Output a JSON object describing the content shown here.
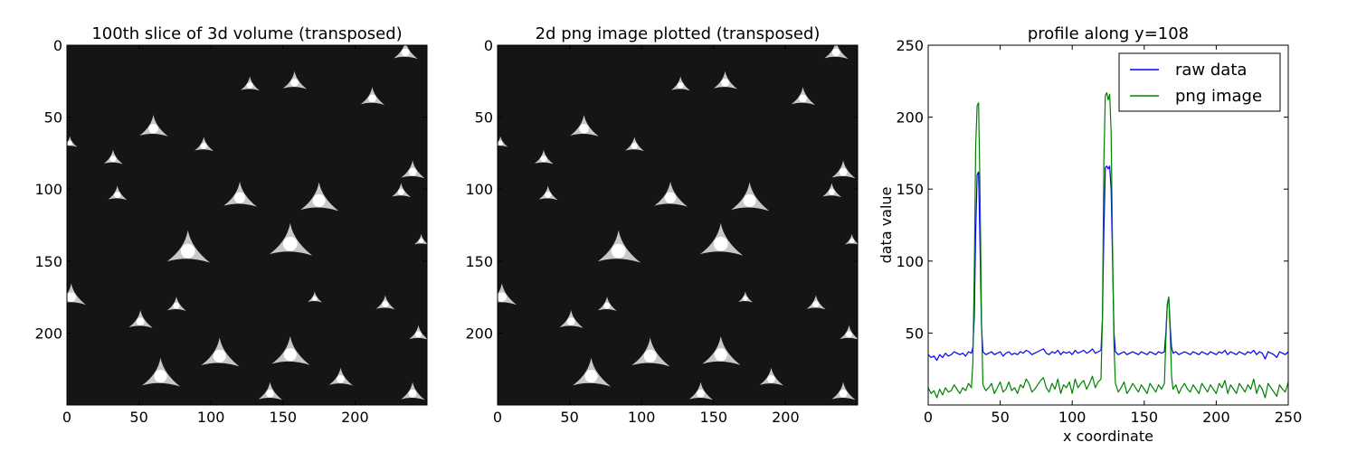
{
  "chart_data": [
    {
      "type": "heatmap",
      "title": "100th slice of 3d volume (transposed)",
      "colormap": "gray",
      "xlim": [
        0,
        250
      ],
      "ylim": [
        250,
        0
      ],
      "xticks": [
        0,
        50,
        100,
        150,
        200
      ],
      "yticks": [
        0,
        50,
        100,
        150,
        200
      ],
      "background_color": "#151515",
      "features": [
        {
          "x": 60,
          "y": 58,
          "size": 6
        },
        {
          "x": 95,
          "y": 70,
          "size": 4
        },
        {
          "x": 32,
          "y": 79,
          "size": 4
        },
        {
          "x": 127,
          "y": 28,
          "size": 4
        },
        {
          "x": 158,
          "y": 26,
          "size": 5
        },
        {
          "x": 212,
          "y": 37,
          "size": 5
        },
        {
          "x": 235,
          "y": 5,
          "size": 5
        },
        {
          "x": 2,
          "y": 68,
          "size": 3
        },
        {
          "x": 120,
          "y": 106,
          "size": 7
        },
        {
          "x": 35,
          "y": 104,
          "size": 4
        },
        {
          "x": 175,
          "y": 108,
          "size": 8
        },
        {
          "x": 240,
          "y": 88,
          "size": 5
        },
        {
          "x": 232,
          "y": 102,
          "size": 4
        },
        {
          "x": 84,
          "y": 143,
          "size": 9
        },
        {
          "x": 155,
          "y": 138,
          "size": 9
        },
        {
          "x": 246,
          "y": 136,
          "size": 3
        },
        {
          "x": 172,
          "y": 176,
          "size": 3
        },
        {
          "x": 3,
          "y": 175,
          "size": 6
        },
        {
          "x": 76,
          "y": 181,
          "size": 4
        },
        {
          "x": 51,
          "y": 192,
          "size": 5
        },
        {
          "x": 221,
          "y": 180,
          "size": 4
        },
        {
          "x": 244,
          "y": 201,
          "size": 4
        },
        {
          "x": 106,
          "y": 216,
          "size": 8
        },
        {
          "x": 155,
          "y": 215,
          "size": 8
        },
        {
          "x": 141,
          "y": 242,
          "size": 5
        },
        {
          "x": 190,
          "y": 232,
          "size": 5
        },
        {
          "x": 240,
          "y": 242,
          "size": 5
        },
        {
          "x": 65,
          "y": 230,
          "size": 8
        }
      ]
    },
    {
      "type": "heatmap",
      "title": "2d png image plotted (transposed)",
      "colormap": "gray",
      "xlim": [
        0,
        250
      ],
      "ylim": [
        250,
        0
      ],
      "xticks": [
        0,
        50,
        100,
        150,
        200
      ],
      "yticks": [
        0,
        50,
        100,
        150,
        200
      ],
      "background_color": "#151515",
      "same_image_as": "100th slice of 3d volume (transposed)"
    },
    {
      "type": "line",
      "title": "profile along y=108",
      "xlabel": "x coordinate",
      "ylabel": "data value",
      "xlim": [
        0,
        250
      ],
      "ylim": [
        0,
        250
      ],
      "xticks": [
        0,
        50,
        100,
        150,
        200,
        250
      ],
      "yticks": [
        0,
        50,
        100,
        150,
        200,
        250
      ],
      "grid": false,
      "legend_position": "top-right",
      "x": [
        0,
        2,
        4,
        6,
        8,
        10,
        12,
        14,
        16,
        18,
        20,
        22,
        24,
        26,
        28,
        30,
        31,
        32,
        33,
        34,
        35,
        36,
        37,
        38,
        40,
        42,
        44,
        46,
        48,
        50,
        52,
        54,
        56,
        58,
        60,
        62,
        64,
        66,
        68,
        70,
        72,
        74,
        76,
        78,
        80,
        82,
        84,
        86,
        88,
        90,
        92,
        94,
        96,
        98,
        100,
        102,
        104,
        106,
        108,
        110,
        112,
        114,
        116,
        118,
        120,
        121,
        122,
        123,
        124,
        125,
        126,
        127,
        128,
        129,
        130,
        132,
        134,
        136,
        138,
        140,
        142,
        144,
        146,
        148,
        150,
        152,
        154,
        156,
        158,
        160,
        162,
        164,
        165,
        166,
        167,
        168,
        169,
        170,
        172,
        174,
        176,
        178,
        180,
        182,
        184,
        186,
        188,
        190,
        192,
        194,
        196,
        198,
        200,
        202,
        204,
        206,
        208,
        210,
        212,
        214,
        216,
        218,
        220,
        222,
        224,
        226,
        228,
        230,
        232,
        234,
        236,
        238,
        240,
        242,
        244,
        246,
        248,
        250
      ],
      "series": [
        {
          "name": "raw data",
          "color": "#0000ff",
          "values": [
            35,
            33,
            34,
            31,
            35,
            33,
            36,
            34,
            35,
            37,
            36,
            35,
            36,
            34,
            37,
            36,
            40,
            60,
            120,
            160,
            162,
            110,
            55,
            37,
            35,
            36,
            37,
            35,
            36,
            37,
            34,
            36,
            37,
            35,
            36,
            35,
            37,
            36,
            38,
            37,
            35,
            36,
            37,
            38,
            39,
            36,
            35,
            37,
            36,
            38,
            35,
            37,
            36,
            37,
            35,
            38,
            36,
            37,
            38,
            36,
            37,
            39,
            36,
            37,
            38,
            60,
            120,
            165,
            166,
            164,
            166,
            150,
            100,
            50,
            37,
            35,
            36,
            37,
            35,
            36,
            37,
            36,
            35,
            37,
            36,
            35,
            37,
            36,
            35,
            37,
            36,
            37,
            50,
            70,
            75,
            55,
            40,
            36,
            37,
            35,
            36,
            37,
            36,
            35,
            37,
            36,
            35,
            37,
            36,
            35,
            37,
            36,
            35,
            37,
            36,
            38,
            35,
            37,
            36,
            35,
            37,
            36,
            35,
            37,
            36,
            38,
            35,
            37,
            36,
            32,
            37,
            36,
            35,
            33,
            37,
            36,
            35,
            37
          ]
        },
        {
          "name": "png image",
          "color": "#008000",
          "values": [
            12,
            8,
            10,
            5,
            11,
            7,
            12,
            9,
            10,
            14,
            11,
            8,
            12,
            10,
            15,
            12,
            30,
            90,
            180,
            208,
            210,
            150,
            60,
            14,
            10,
            12,
            15,
            8,
            12,
            16,
            9,
            11,
            16,
            10,
            12,
            8,
            14,
            12,
            18,
            15,
            9,
            11,
            14,
            17,
            19,
            12,
            9,
            15,
            11,
            18,
            8,
            14,
            12,
            16,
            8,
            18,
            12,
            15,
            17,
            11,
            15,
            20,
            12,
            16,
            18,
            60,
            170,
            215,
            217,
            212,
            216,
            190,
            110,
            40,
            15,
            9,
            12,
            16,
            8,
            11,
            15,
            12,
            9,
            14,
            11,
            8,
            15,
            12,
            9,
            14,
            11,
            15,
            45,
            70,
            75,
            50,
            20,
            11,
            14,
            8,
            12,
            15,
            11,
            9,
            14,
            11,
            8,
            15,
            12,
            9,
            14,
            11,
            8,
            15,
            12,
            17,
            8,
            14,
            11,
            8,
            15,
            12,
            9,
            14,
            11,
            18,
            8,
            14,
            11,
            5,
            15,
            12,
            9,
            6,
            14,
            11,
            9,
            16
          ]
        }
      ]
    }
  ]
}
